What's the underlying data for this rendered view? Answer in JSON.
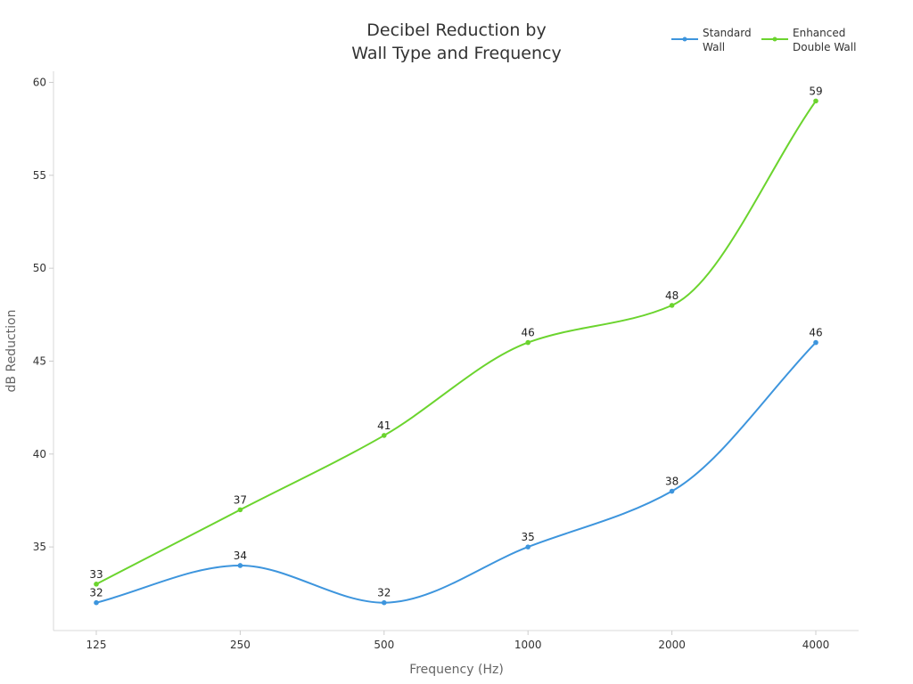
{
  "chart_data": {
    "type": "line",
    "title": [
      "Decibel Reduction by",
      "Wall Type and Frequency"
    ],
    "xlabel": "Frequency (Hz)",
    "ylabel": "dB Reduction",
    "categories": [
      "125",
      "250",
      "500",
      "1000",
      "2000",
      "4000"
    ],
    "ylim": [
      30.5,
      60.6
    ],
    "yticks": [
      35,
      40,
      45,
      50,
      55,
      60
    ],
    "grid": false,
    "legend_position": "top-right",
    "series": [
      {
        "name": [
          "Standard",
          "Wall"
        ],
        "color": "#3d95dd",
        "values": [
          32,
          34,
          32,
          35,
          38,
          46
        ]
      },
      {
        "name": [
          "Enhanced",
          "Double Wall"
        ],
        "color": "#6bd42e",
        "values": [
          33,
          37,
          41,
          46,
          48,
          59
        ]
      }
    ]
  }
}
